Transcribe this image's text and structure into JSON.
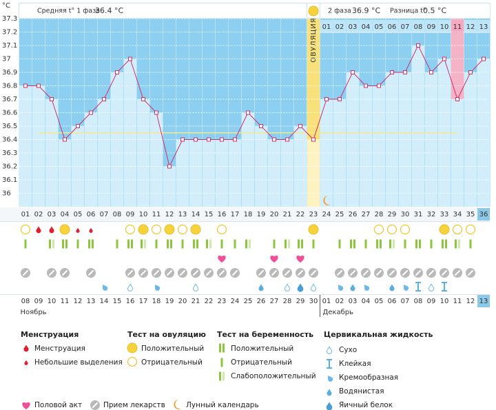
{
  "header": {
    "phase1_label": "Средняя t° 1 фаза",
    "phase1_value": "36.4 °C",
    "phase2_label": "2 фаза",
    "phase2_value": "36.9 °C",
    "diff_label": "Разница t°",
    "diff_value": "0.5 °C"
  },
  "chart_data": {
    "type": "line",
    "y_unit": "°С",
    "ovulation_label": "ОВУЛЯЦИЯ",
    "categories": [
      "01",
      "02",
      "03",
      "04",
      "05",
      "06",
      "07",
      "08",
      "09",
      "10",
      "11",
      "12",
      "13",
      "14",
      "15",
      "16",
      "17",
      "18",
      "19",
      "20",
      "21",
      "22",
      "23",
      "24",
      "25",
      "26",
      "27",
      "28",
      "29",
      "30",
      "31",
      "32",
      "33",
      "34",
      "35",
      "36"
    ],
    "values": [
      36.8,
      36.8,
      36.7,
      36.4,
      36.5,
      36.6,
      36.7,
      36.9,
      37.0,
      36.7,
      36.6,
      36.2,
      36.4,
      36.4,
      36.4,
      36.4,
      36.4,
      36.6,
      36.5,
      36.4,
      36.4,
      36.5,
      36.4,
      36.7,
      36.7,
      36.9,
      36.8,
      36.8,
      36.9,
      36.9,
      37.1,
      36.9,
      37.0,
      36.7,
      36.9,
      37.0
    ],
    "ylim": [
      35.9,
      37.3
    ],
    "yticks": [
      36,
      36.1,
      36.2,
      36.3,
      36.4,
      36.5,
      36.6,
      36.7,
      36.8,
      36.9,
      37,
      37.1,
      37.2,
      37.3
    ],
    "coverline": 36.45,
    "line_color": "#d0306a",
    "ovulation_day": 23,
    "highlight_day": 34,
    "current_day": 36,
    "moon_day": 24,
    "luteal_days": [
      "01",
      "02",
      "03",
      "04",
      "05",
      "06",
      "07",
      "08",
      "09",
      "10",
      "11",
      "12",
      "13"
    ],
    "dates": [
      "08",
      "09",
      "10",
      "11",
      "12",
      "13",
      "14",
      "15",
      "16",
      "17",
      "18",
      "19",
      "20",
      "21",
      "22",
      "23",
      "24",
      "25",
      "26",
      "27",
      "28",
      "29",
      "30",
      "01",
      "02",
      "03",
      "04",
      "05",
      "06",
      "07",
      "08",
      "09",
      "10",
      "11",
      "12",
      "13"
    ],
    "date_colors": [
      "#333",
      "#333",
      "#e02040",
      "#e02040",
      "#333",
      "#333",
      "#333",
      "#333",
      "#333",
      "#e02040",
      "#e02040",
      "#333",
      "#333",
      "#333",
      "#333",
      "#333",
      "#e02040",
      "#e02040",
      "#333",
      "#333",
      "#333",
      "#333",
      "#333",
      "#e02040",
      "#e02040",
      "#333",
      "#333",
      "#333",
      "#333",
      "#333",
      "#e02040",
      "#e02040",
      "#333",
      "#333",
      "#333",
      "#333"
    ],
    "months": [
      "Ноябрь",
      "Декабрь"
    ],
    "marks_tests": [
      "ovu_neg",
      "menses",
      "menses",
      "ovu_pos",
      "spotting",
      "spotting",
      null,
      null,
      "ovu_neg",
      "ovu_pos",
      "ovu_neg",
      "ovu_pos",
      "ovu_neg",
      "ovu_pos",
      null,
      "ovu_neg",
      null,
      null,
      null,
      null,
      null,
      null,
      "ovu_pos",
      null,
      null,
      null,
      null,
      "ovu_neg",
      "ovu_neg",
      "ovu_neg",
      null,
      null,
      "ovu_pos",
      "ovu_neg",
      "ovu_neg",
      null
    ],
    "marks_pregnancy": [
      "neg",
      null,
      "weak",
      "pos",
      "neg",
      "pos",
      null,
      "neg",
      "pos",
      "weak",
      "neg",
      "pos",
      "neg",
      "pos",
      "weak",
      "neg",
      "neg",
      "weak",
      null,
      "neg",
      "weak",
      "pos",
      "neg",
      null,
      "neg",
      "pos",
      "neg",
      "pos",
      "weak",
      "neg",
      "pos",
      "neg",
      "pos",
      "weak",
      "neg",
      null
    ],
    "marks_intercourse": [
      null,
      null,
      null,
      null,
      null,
      null,
      null,
      null,
      null,
      null,
      null,
      null,
      null,
      null,
      null,
      "heart",
      null,
      null,
      null,
      "heart",
      null,
      "heart",
      null,
      null,
      null,
      null,
      null,
      null,
      null,
      null,
      null,
      null,
      null,
      null,
      null,
      null
    ],
    "marks_medication": [
      "med",
      null,
      "med",
      "med",
      null,
      "med",
      null,
      null,
      "med",
      "med",
      "med",
      "med",
      "med",
      "med",
      "med",
      "med",
      "med",
      null,
      "med",
      "med",
      "med",
      "med",
      "med",
      null,
      "med",
      "med",
      "med",
      "med",
      "med",
      "med",
      "med",
      "med",
      "med",
      "med",
      "med",
      null
    ],
    "marks_fluid": [
      null,
      null,
      null,
      null,
      null,
      null,
      "creamy",
      null,
      "dry",
      null,
      "creamy",
      null,
      null,
      "dry",
      null,
      null,
      null,
      null,
      "watery",
      null,
      "dry",
      "egg",
      "dry",
      null,
      "creamy",
      "watery",
      "creamy",
      null,
      "watery",
      "creamy",
      "sticky",
      "dry",
      "sticky",
      null,
      null,
      null
    ]
  },
  "legend": {
    "menstruation": {
      "title": "Менструация",
      "items": [
        "Менструация",
        "Небольшие выделения"
      ]
    },
    "ovulation_test": {
      "title": "Тест на овуляцию",
      "items": [
        "Положительный",
        "Отрицательный"
      ]
    },
    "pregnancy_test": {
      "title": "Тест на беременность",
      "items": [
        "Положительный",
        "Отрицательный",
        "Слабоположительный"
      ]
    },
    "cervical_fluid": {
      "title": "Цервикальная жидкость",
      "items": [
        "Сухо",
        "Клейкая",
        "Кремообразная",
        "Водянистая",
        "Яичный белок"
      ]
    },
    "other": [
      "Половой акт",
      "Прием лекарств",
      "Лунный календарь"
    ]
  }
}
